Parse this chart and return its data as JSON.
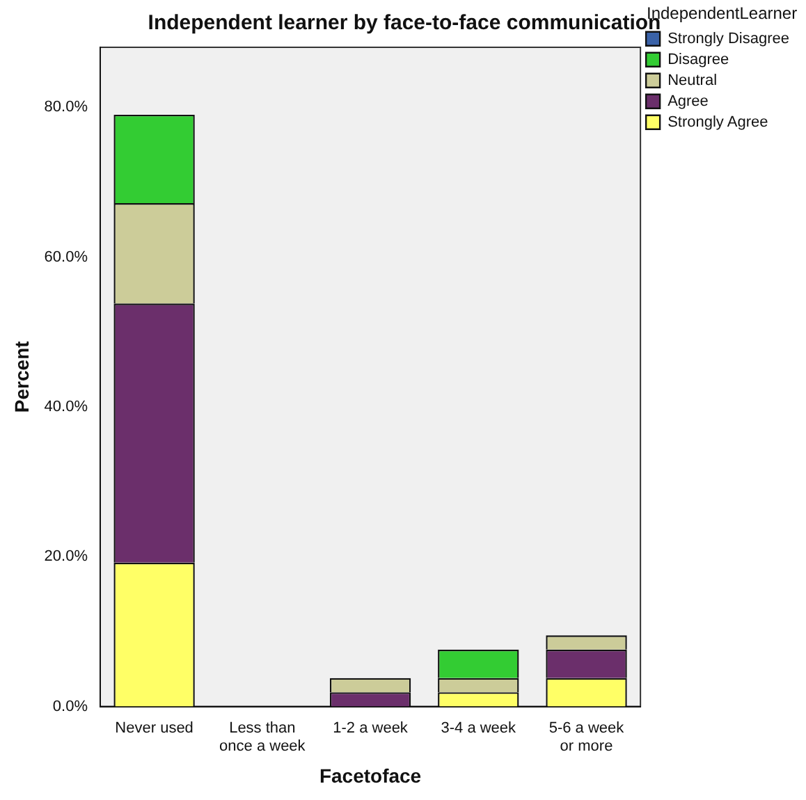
{
  "chart_data": {
    "type": "bar",
    "title": "Independent learner by face-to-face communication",
    "xlabel": "Facetoface",
    "ylabel": "Percent",
    "legend_title": "IndependentLearner",
    "categories": [
      "Never used",
      "Less than once a week",
      "1-2 a week",
      "3-4 a week",
      "5-6 a week or more"
    ],
    "series": [
      {
        "name": "Strongly Agree",
        "color": "#ffff66",
        "values": [
          19.2,
          0,
          0,
          1.9,
          3.8
        ]
      },
      {
        "name": "Agree",
        "color": "#6b2f6b",
        "values": [
          34.6,
          0,
          1.9,
          0,
          3.8
        ]
      },
      {
        "name": "Neutral",
        "color": "#cccc99",
        "values": [
          13.4,
          0,
          1.9,
          1.9,
          1.9
        ]
      },
      {
        "name": "Disagree",
        "color": "#33cc33",
        "values": [
          11.8,
          0,
          0,
          3.8,
          0
        ]
      },
      {
        "name": "Strongly Disagree",
        "color": "#3a62a8",
        "values": [
          0,
          0,
          0,
          0,
          0
        ]
      }
    ],
    "stacked": true,
    "ylim": [
      0,
      88
    ],
    "yticks": [
      {
        "value": 0,
        "label": "0.0%"
      },
      {
        "value": 20,
        "label": "20.0%"
      },
      {
        "value": 40,
        "label": "40.0%"
      },
      {
        "value": 60,
        "label": "60.0%"
      },
      {
        "value": 80,
        "label": "80.0%"
      }
    ],
    "grid": false,
    "legend": "right"
  }
}
